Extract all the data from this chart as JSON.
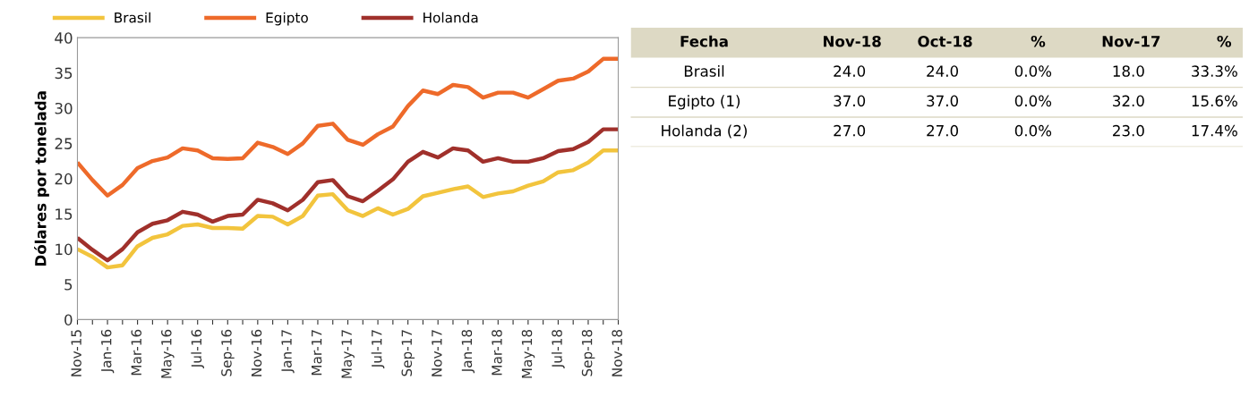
{
  "chart_data": [
    {
      "type": "line",
      "ylabel": "Dólares por tonelada",
      "categories": [
        "Nov-15",
        null,
        "Jan-16",
        null,
        "Mar-16",
        null,
        "May-16",
        null,
        "Jul-16",
        null,
        "Sep-16",
        null,
        "Nov-16",
        null,
        "Jan-17",
        null,
        "Mar-17",
        null,
        "May-17",
        null,
        "Jul-17",
        null,
        "Sep-17",
        null,
        "Nov-17",
        null,
        "Jan-18",
        null,
        "Mar-18",
        null,
        "May-18",
        null,
        "Jul-18",
        null,
        "Sep-18",
        null,
        "Nov-18"
      ],
      "series": [
        {
          "name": "Brasil",
          "color": "#f2c43d",
          "values": [
            10.0,
            8.9,
            7.4,
            7.7,
            10.4,
            11.6,
            12.1,
            13.3,
            13.5,
            13.0,
            13.0,
            12.9,
            14.7,
            14.6,
            13.5,
            14.7,
            17.6,
            17.8,
            15.5,
            14.7,
            15.8,
            14.9,
            15.7,
            17.5,
            18.0,
            18.5,
            18.9,
            17.4,
            17.9,
            18.2,
            19.0,
            19.6,
            20.9,
            21.2,
            22.3,
            24.0,
            24.0
          ]
        },
        {
          "name": "Egipto",
          "color": "#ee6a2a",
          "values": [
            22.3,
            19.8,
            17.6,
            19.1,
            21.5,
            22.5,
            23.0,
            24.3,
            24.0,
            22.9,
            22.8,
            22.9,
            25.1,
            24.5,
            23.5,
            25.0,
            27.5,
            27.8,
            25.5,
            24.8,
            26.3,
            27.4,
            30.3,
            32.5,
            32.0,
            33.3,
            33.0,
            31.5,
            32.2,
            32.2,
            31.5,
            32.7,
            33.9,
            34.2,
            35.2,
            37.0,
            37.0
          ]
        },
        {
          "name": "Holanda",
          "color": "#a0302b",
          "values": [
            11.6,
            9.9,
            8.4,
            10.0,
            12.4,
            13.6,
            14.1,
            15.3,
            14.9,
            13.9,
            14.7,
            14.9,
            17.0,
            16.5,
            15.5,
            17.0,
            19.5,
            19.8,
            17.5,
            16.8,
            18.3,
            19.9,
            22.4,
            23.8,
            23.0,
            24.3,
            24.0,
            22.4,
            22.9,
            22.4,
            22.4,
            22.9,
            23.9,
            24.2,
            25.2,
            27.0,
            27.0
          ]
        }
      ],
      "ylim": [
        0,
        40
      ],
      "yticks": [
        0,
        5,
        10,
        15,
        20,
        25,
        30,
        35,
        40
      ],
      "grid": false,
      "legend": "top",
      "marker": "none",
      "line_style": "solid"
    },
    {
      "type": "other",
      "categories": [
        "Fecha",
        "Nov-18",
        "Oct-18",
        "%",
        "Nov-17",
        "%"
      ],
      "y_categories": [
        "Brasil",
        "Egipto (1)",
        "Holanda (2)"
      ],
      "cell_labels": [
        [
          "24.0",
          "24.0",
          "0.0%",
          "18.0",
          "33.3%"
        ],
        [
          "37.0",
          "37.0",
          "0.0%",
          "32.0",
          "15.6%"
        ],
        [
          "27.0",
          "27.0",
          "0.0%",
          "23.0",
          "17.4%"
        ]
      ]
    }
  ]
}
